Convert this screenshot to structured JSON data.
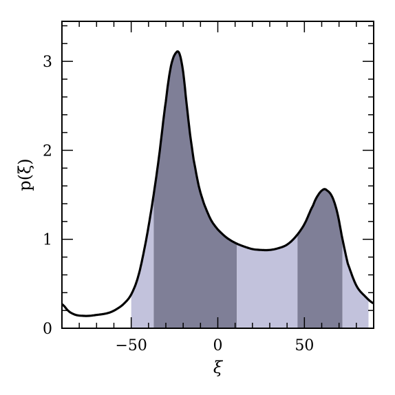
{
  "chart_data": {
    "type": "area",
    "title": "",
    "xlabel": "ξ",
    "ylabel": "p(ξ)",
    "xlim": [
      -90,
      90
    ],
    "ylim": [
      0,
      3.45
    ],
    "x_ticks": [
      {
        "value": -50,
        "label": "−50"
      },
      {
        "value": 0,
        "label": "0"
      },
      {
        "value": 50,
        "label": "50"
      }
    ],
    "y_ticks": [
      {
        "value": 0,
        "label": "0"
      },
      {
        "value": 1,
        "label": "1"
      },
      {
        "value": 2,
        "label": "2"
      },
      {
        "value": 3,
        "label": "3"
      }
    ],
    "x_minor_step": 10,
    "y_minor_step": 0.2,
    "series": [
      {
        "x": [
          -90,
          -86,
          -82,
          -78,
          -74,
          -70,
          -66,
          -62,
          -58,
          -54,
          -50,
          -46,
          -42,
          -38,
          -34,
          -30,
          -27,
          -24,
          -22,
          -20,
          -18,
          -16,
          -14,
          -11,
          -8,
          -4,
          0,
          5,
          10,
          15,
          20,
          25,
          30,
          35,
          40,
          45,
          50,
          55,
          58,
          61,
          63,
          66,
          69,
          72,
          75,
          80,
          85,
          90
        ],
        "values": [
          0.27,
          0.19,
          0.15,
          0.14,
          0.14,
          0.15,
          0.16,
          0.18,
          0.22,
          0.28,
          0.38,
          0.58,
          0.93,
          1.38,
          1.92,
          2.55,
          2.95,
          3.1,
          3.08,
          2.88,
          2.52,
          2.18,
          1.9,
          1.6,
          1.4,
          1.22,
          1.11,
          1.02,
          0.96,
          0.92,
          0.89,
          0.88,
          0.88,
          0.9,
          0.94,
          1.03,
          1.17,
          1.38,
          1.5,
          1.56,
          1.55,
          1.48,
          1.3,
          1.0,
          0.73,
          0.48,
          0.36,
          0.28
        ]
      }
    ],
    "shaded_regions": [
      {
        "from": -50,
        "to": -37,
        "color": "#c2c2dc"
      },
      {
        "from": -37,
        "to": 11,
        "color": "#7f7f97"
      },
      {
        "from": 11,
        "to": 46,
        "color": "#c2c2dc"
      },
      {
        "from": 46,
        "to": 72,
        "color": "#7f7f97"
      },
      {
        "from": 72,
        "to": 87,
        "color": "#c2c2dc"
      }
    ],
    "line_color": "#000000",
    "grid": false,
    "legend": "none"
  }
}
